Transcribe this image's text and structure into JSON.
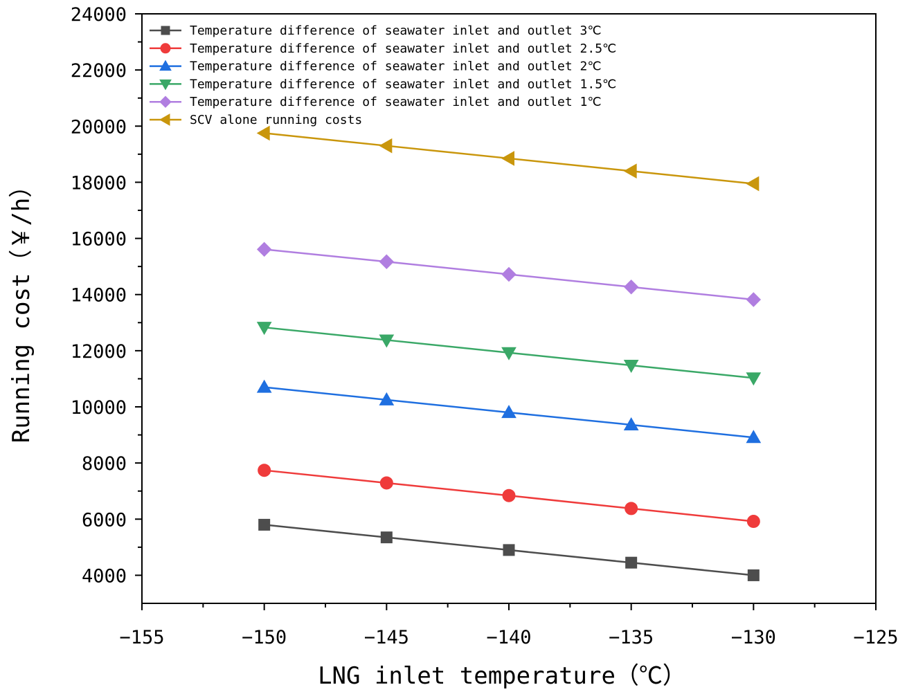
{
  "chart_data": {
    "type": "line",
    "title": "",
    "xlabel": "LNG inlet temperature（℃）",
    "ylabel": "Running cost（￥/h）",
    "xlim": [
      -155,
      -125
    ],
    "ylim": [
      3000,
      24000
    ],
    "xticks": [
      -155,
      -150,
      -145,
      -140,
      -135,
      -130,
      -125
    ],
    "xtick_labels": [
      "−155",
      "−150",
      "−145",
      "−140",
      "−135",
      "−130",
      "−125"
    ],
    "yticks": [
      4000,
      6000,
      8000,
      10000,
      12000,
      14000,
      16000,
      18000,
      20000,
      22000,
      24000
    ],
    "ytick_labels": [
      "4000",
      "6000",
      "8000",
      "10000",
      "12000",
      "14000",
      "16000",
      "18000",
      "20000",
      "22000",
      "24000"
    ],
    "x": [
      -150,
      -145,
      -140,
      -135,
      -130
    ],
    "legend_position": "top-left",
    "grid": false,
    "series": [
      {
        "name": "Temperature difference of seawater inlet and outlet 3℃",
        "color": "#4d4d4d",
        "marker": "square",
        "values": [
          5800,
          5350,
          4900,
          4450,
          4000
        ]
      },
      {
        "name": "Temperature difference of seawater inlet and outlet 2.5℃",
        "color": "#ef3b3b",
        "marker": "circle",
        "values": [
          7740,
          7290,
          6840,
          6380,
          5920
        ]
      },
      {
        "name": "Temperature difference of seawater inlet and outlet 2℃",
        "color": "#1f6fe0",
        "marker": "triangle-up",
        "values": [
          10700,
          10250,
          9800,
          9360,
          8910
        ]
      },
      {
        "name": "Temperature difference of seawater inlet and outlet 1.5℃",
        "color": "#3aa867",
        "marker": "triangle-down",
        "values": [
          12830,
          12380,
          11930,
          11480,
          11030
        ]
      },
      {
        "name": "Temperature difference of seawater inlet and outlet 1℃",
        "color": "#b07ee0",
        "marker": "diamond",
        "values": [
          15610,
          15170,
          14720,
          14270,
          13820
        ]
      },
      {
        "name": "SCV alone running costs",
        "color": "#c9960c",
        "marker": "triangle-left",
        "values": [
          19750,
          19300,
          18850,
          18400,
          17950
        ]
      }
    ]
  }
}
